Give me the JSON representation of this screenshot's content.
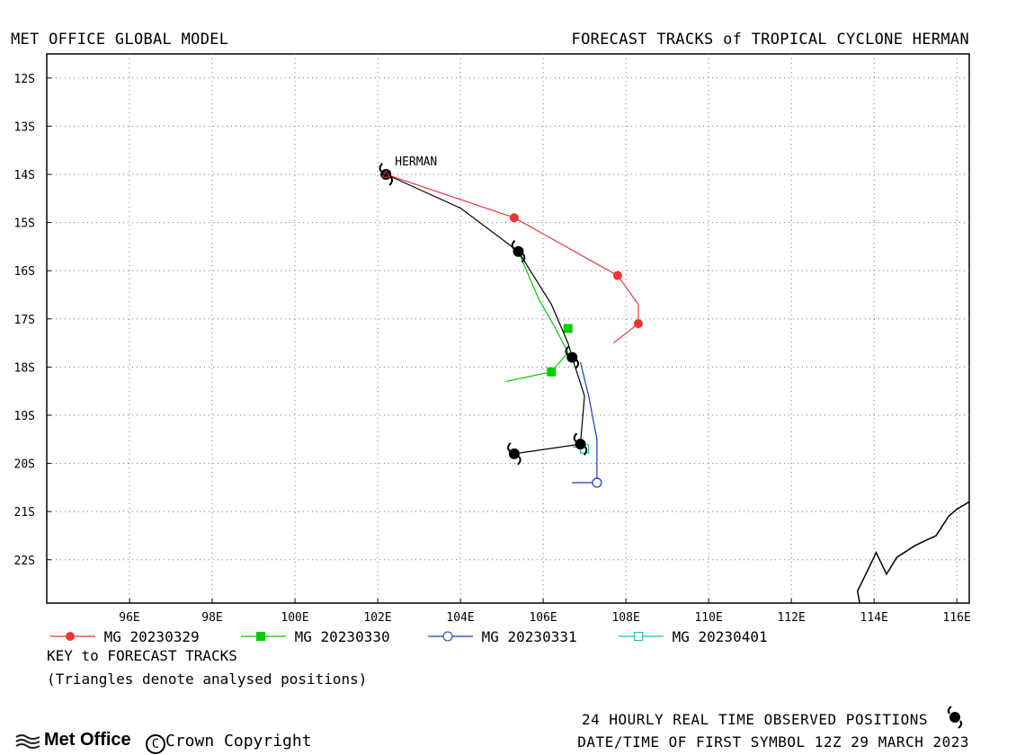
{
  "header": {
    "left_title": "MET OFFICE GLOBAL MODEL",
    "right_title": "FORECAST TRACKS of TROPICAL CYCLONE HERMAN"
  },
  "map": {
    "lon_range": [
      94.0,
      116.3
    ],
    "lat_range": [
      -11.5,
      -22.9
    ],
    "lat_labels": [
      "12S",
      "13S",
      "14S",
      "15S",
      "16S",
      "17S",
      "18S",
      "19S",
      "20S",
      "21S",
      "22S"
    ],
    "lat_values": [
      -12,
      -13,
      -14,
      -15,
      -16,
      -17,
      -18,
      -19,
      -20,
      -21,
      -22
    ],
    "lon_labels": [
      "96E",
      "98E",
      "100E",
      "102E",
      "104E",
      "106E",
      "108E",
      "110E",
      "112E",
      "114E",
      "116E"
    ],
    "lon_values": [
      96,
      98,
      100,
      102,
      104,
      106,
      108,
      110,
      112,
      114,
      116
    ],
    "storm_label": "HERMAN",
    "coastline": [
      [
        113.65,
        -22.9
      ],
      [
        113.6,
        -22.65
      ],
      [
        113.8,
        -22.3
      ],
      [
        114.05,
        -21.85
      ],
      [
        114.3,
        -22.3
      ],
      [
        114.55,
        -21.95
      ],
      [
        115.0,
        -21.7
      ],
      [
        115.5,
        -21.5
      ],
      [
        115.8,
        -21.1
      ],
      [
        116.0,
        -20.95
      ],
      [
        116.3,
        -20.8
      ]
    ],
    "observed_positions": [
      {
        "lon": 102.2,
        "lat": -14.0
      },
      {
        "lon": 105.4,
        "lat": -15.6
      },
      {
        "lon": 106.7,
        "lat": -17.8
      },
      {
        "lon": 106.9,
        "lat": -19.6
      },
      {
        "lon": 105.3,
        "lat": -19.8
      }
    ],
    "tracks": [
      {
        "name": "MG 20230329",
        "color": "#ee3333",
        "marker": "filled-circle",
        "line": [
          [
            102.2,
            -14.0
          ],
          [
            105.3,
            -14.9
          ],
          [
            107.8,
            -16.1
          ],
          [
            108.3,
            -16.7
          ],
          [
            108.3,
            -17.1
          ],
          [
            107.7,
            -17.5
          ]
        ],
        "markers": [
          [
            105.3,
            -14.9
          ],
          [
            107.8,
            -16.1
          ],
          [
            108.3,
            -17.1
          ]
        ]
      },
      {
        "name": "MG 20230330",
        "color": "#00cc00",
        "marker": "filled-square",
        "line": [
          [
            105.4,
            -15.6
          ],
          [
            105.9,
            -16.6
          ],
          [
            106.3,
            -17.2
          ],
          [
            106.6,
            -17.7
          ],
          [
            106.2,
            -18.1
          ],
          [
            105.1,
            -18.3
          ]
        ],
        "markers": [
          [
            106.6,
            -17.2
          ],
          [
            106.2,
            -18.1
          ]
        ]
      },
      {
        "name": "MG 20230331",
        "color": "#2233cc",
        "marker": "open-circle",
        "line": [
          [
            106.9,
            -17.9
          ],
          [
            107.1,
            -18.6
          ],
          [
            107.3,
            -19.5
          ],
          [
            107.3,
            -20.4
          ],
          [
            106.7,
            -20.4
          ]
        ],
        "markers": [
          [
            107.3,
            -20.4
          ]
        ]
      },
      {
        "name": "MG 20230401",
        "color": "#22bbbb",
        "marker": "open-square",
        "line": [
          [
            106.9,
            -19.6
          ],
          [
            107.0,
            -19.7
          ],
          [
            106.7,
            -19.65
          ]
        ],
        "markers": [
          [
            107.0,
            -19.7
          ]
        ]
      }
    ],
    "analysed_track": [
      [
        102.2,
        -14.0
      ],
      [
        104.0,
        -14.7
      ],
      [
        105.4,
        -15.6
      ],
      [
        106.2,
        -16.7
      ],
      [
        106.6,
        -17.5
      ],
      [
        106.7,
        -17.8
      ],
      [
        107.0,
        -18.6
      ],
      [
        106.9,
        -19.6
      ],
      [
        105.3,
        -19.8
      ]
    ]
  },
  "legend": [
    {
      "label": "MG 20230329",
      "color": "#ee3333",
      "marker": "filled-circle"
    },
    {
      "label": "MG 20230330",
      "color": "#00cc00",
      "marker": "filled-square"
    },
    {
      "label": "MG 20230331",
      "color": "#2233cc",
      "marker": "open-circle"
    },
    {
      "label": "MG 20230401",
      "color": "#22bbbb",
      "marker": "open-square"
    }
  ],
  "key": {
    "line1": "KEY to FORECAST TRACKS",
    "line2": "(Triangles denote analysed positions)"
  },
  "footer": {
    "logo_text": "Met Office",
    "copyright": "Crown Copyright",
    "observed_note": "24 HOURLY REAL TIME OBSERVED POSITIONS",
    "first_symbol": "DATE/TIME OF FIRST SYMBOL 12Z 29 MARCH 2023"
  }
}
